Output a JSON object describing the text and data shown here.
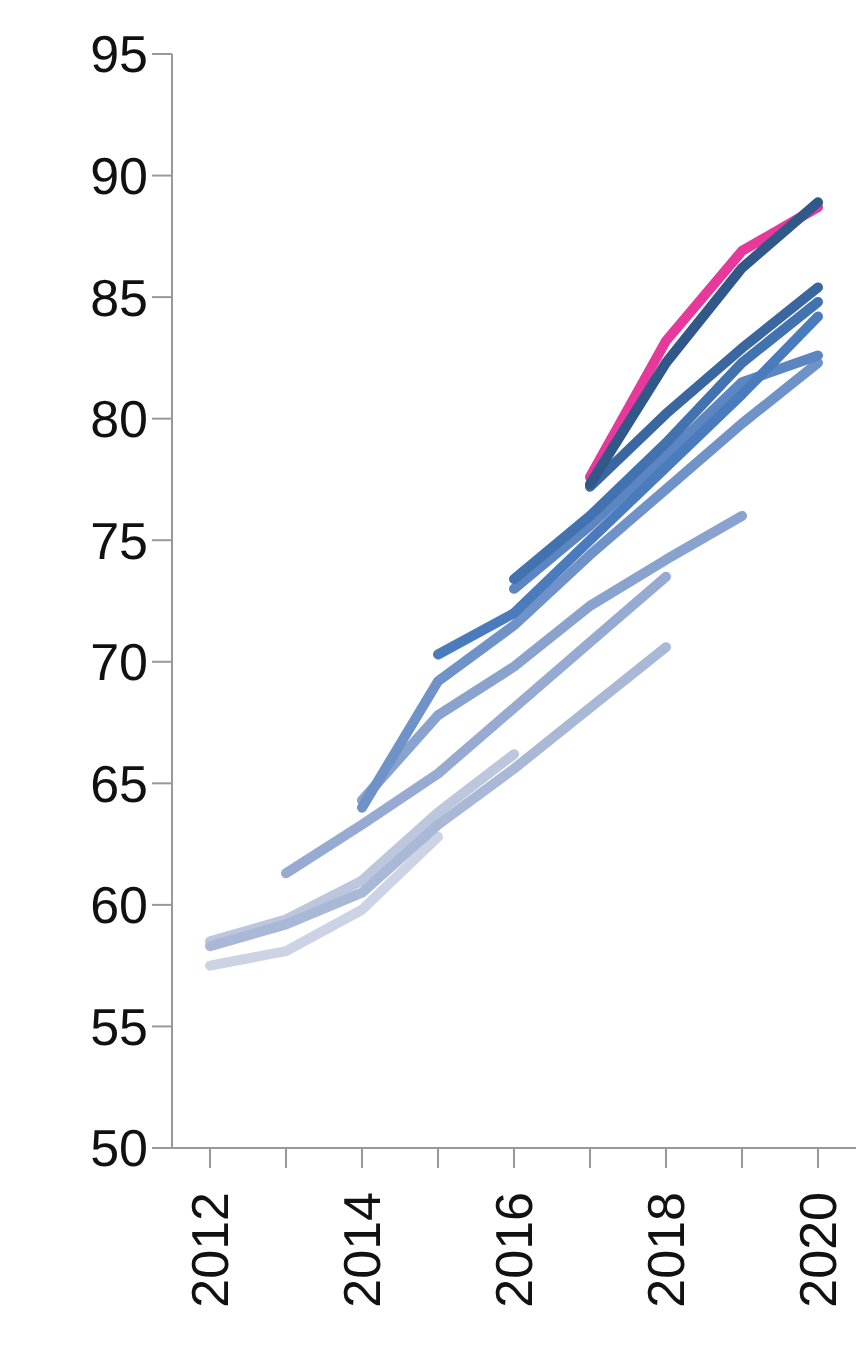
{
  "chart_data": {
    "type": "line",
    "categories": [
      "2012",
      null,
      "2014",
      null,
      "2016",
      null,
      "2018",
      null,
      "2020"
    ],
    "ylim": [
      50,
      95
    ],
    "yticks": [
      50,
      55,
      60,
      65,
      70,
      75,
      80,
      85,
      90,
      95
    ],
    "grid": false,
    "legend": false,
    "marker": "none",
    "line_style": "solid",
    "series": [
      {
        "color": "#cbd3e4",
        "values": [
          57.5,
          58.1,
          59.8,
          62.8,
          null,
          null,
          null,
          null,
          null
        ]
      },
      {
        "color": "#bcc6dd",
        "values": [
          58.5,
          59.4,
          61.0,
          63.8,
          66.2,
          null,
          null,
          null,
          null
        ]
      },
      {
        "color": "#a9b8d6",
        "values": [
          58.3,
          59.2,
          60.5,
          63.3,
          65.6,
          68.1,
          70.6,
          null,
          null
        ]
      },
      {
        "color": "#97abd2",
        "values": [
          null,
          61.3,
          63.3,
          65.4,
          68.1,
          70.8,
          73.5,
          null,
          null
        ]
      },
      {
        "color": "#8aa2ce",
        "values": [
          null,
          null,
          64.3,
          67.8,
          69.8,
          72.3,
          74.2,
          76.0,
          null
        ]
      },
      {
        "color": "#6f92c8",
        "values": [
          null,
          null,
          64.0,
          69.2,
          71.5,
          74.4,
          77.1,
          79.8,
          82.3
        ]
      },
      {
        "color": "#5b86c2",
        "values": [
          null,
          null,
          null,
          null,
          73.0,
          75.6,
          78.5,
          81.5,
          82.6
        ]
      },
      {
        "color": "#4a7bbd",
        "values": [
          null,
          null,
          null,
          70.3,
          72.0,
          75.0,
          78.0,
          81.0,
          84.2
        ]
      },
      {
        "color": "#4272b0",
        "values": [
          null,
          null,
          null,
          null,
          73.4,
          76.0,
          79.0,
          82.3,
          84.8
        ]
      },
      {
        "color": "#3b67a0",
        "values": [
          null,
          null,
          null,
          null,
          null,
          77.2,
          80.2,
          82.9,
          85.4
        ]
      },
      {
        "color": "#e6399b",
        "values": [
          null,
          null,
          null,
          null,
          null,
          77.6,
          83.2,
          86.9,
          88.7
        ]
      },
      {
        "color": "#30598a",
        "values": [
          null,
          null,
          null,
          null,
          null,
          77.3,
          82.3,
          86.2,
          88.9
        ]
      }
    ]
  }
}
